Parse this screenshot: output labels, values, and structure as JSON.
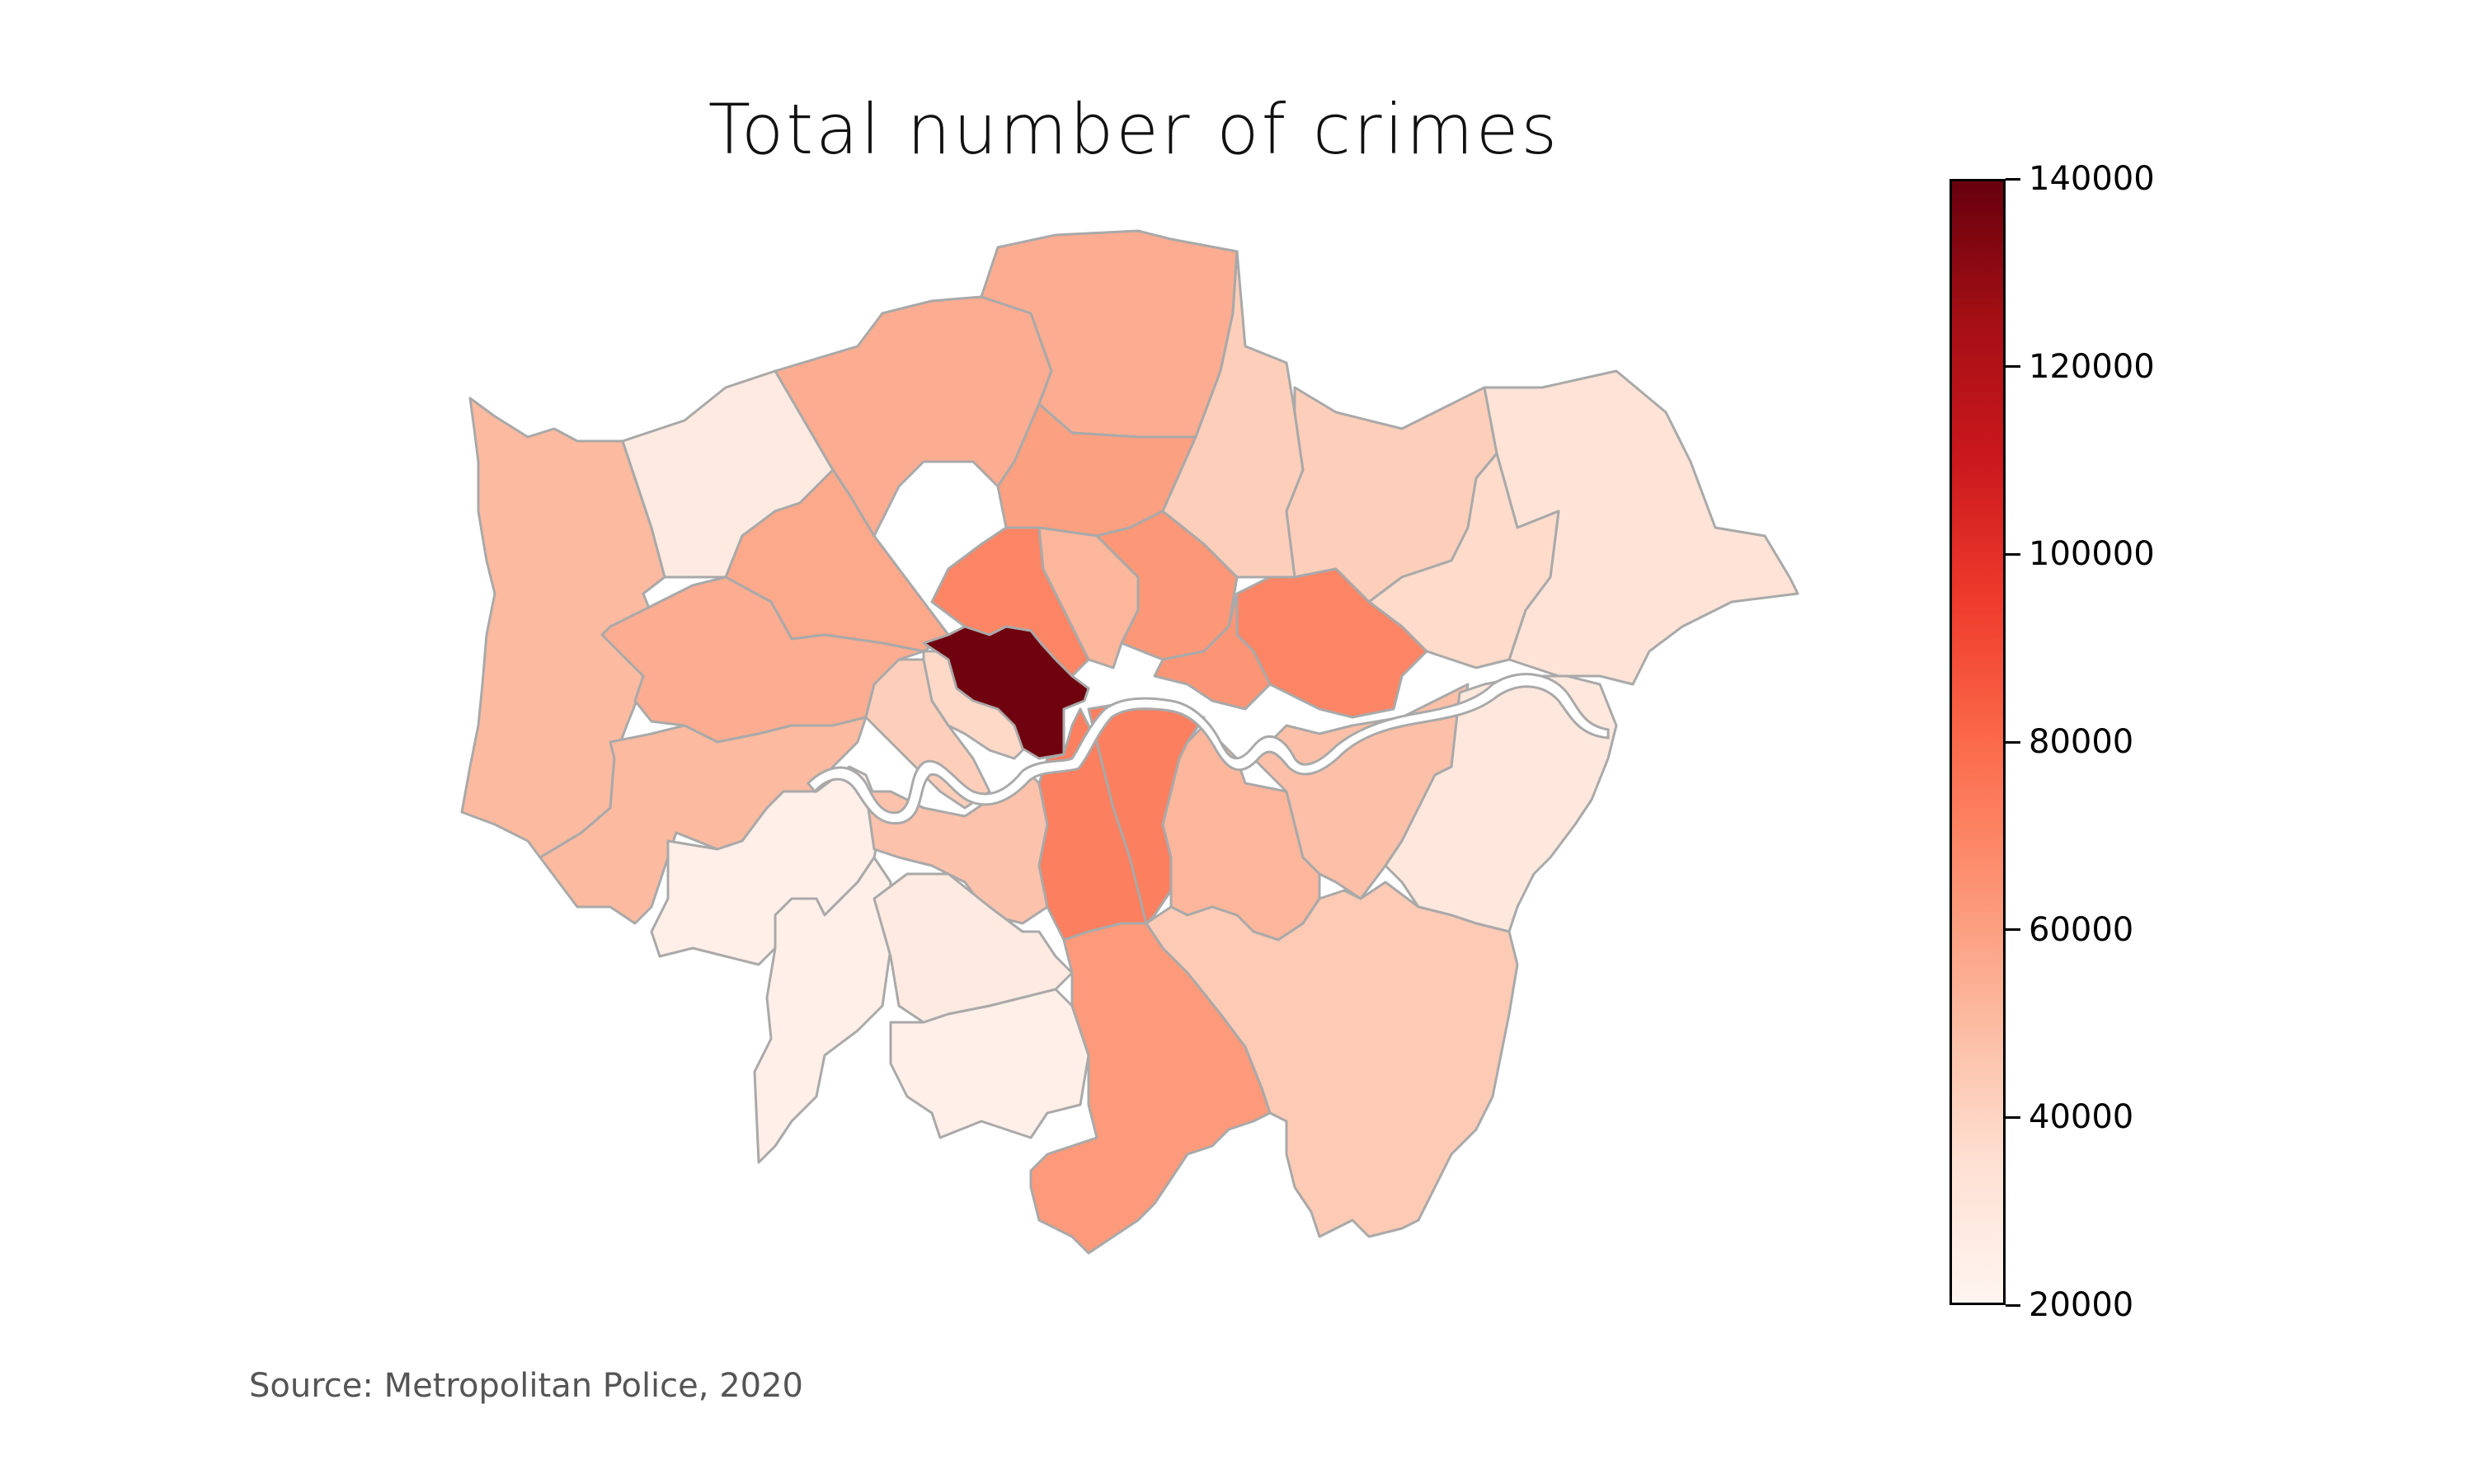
{
  "title": "Total number of crimes",
  "source": "Source: Metropolitan Police, 2020",
  "colorbar": {
    "min": 20000,
    "max": 140000,
    "ticks": [
      "140000",
      "120000",
      "100000",
      "80000",
      "60000",
      "40000",
      "20000"
    ],
    "tick_values": [
      140000,
      120000,
      100000,
      80000,
      60000,
      40000,
      20000
    ],
    "colormap": "Reds",
    "colors": [
      "#fff5f0",
      "#fee0d2",
      "#fcbba1",
      "#fc9272",
      "#fb6a4a",
      "#ef3b2c",
      "#cb181d",
      "#a50f15",
      "#67000d"
    ]
  },
  "boroughs": [
    {
      "id": "westminster",
      "value": 138000
    },
    {
      "id": "camden",
      "value": 70000
    },
    {
      "id": "islington",
      "value": 52000
    },
    {
      "id": "hackney",
      "value": 63000
    },
    {
      "id": "tower-hamlets",
      "value": 64000
    },
    {
      "id": "newham",
      "value": 70000
    },
    {
      "id": "southwark",
      "value": 72000
    },
    {
      "id": "lambeth",
      "value": 72000
    },
    {
      "id": "lewisham",
      "value": 52000
    },
    {
      "id": "greenwich",
      "value": 48000
    },
    {
      "id": "croydon",
      "value": 62000
    },
    {
      "id": "bromley",
      "value": 44000
    },
    {
      "id": "bexley",
      "value": 30000
    },
    {
      "id": "havering",
      "value": 33000
    },
    {
      "id": "barking-dagenham",
      "value": 37000
    },
    {
      "id": "redbridge",
      "value": 42000
    },
    {
      "id": "waltham-forest",
      "value": 42000
    },
    {
      "id": "enfield",
      "value": 55000
    },
    {
      "id": "haringey",
      "value": 60000
    },
    {
      "id": "barnet",
      "value": 55000
    },
    {
      "id": "harrow",
      "value": 28000
    },
    {
      "id": "hillingdon",
      "value": 50000
    },
    {
      "id": "ealing",
      "value": 55000
    },
    {
      "id": "brent",
      "value": 57000
    },
    {
      "id": "hammersmith-fulham",
      "value": 42000
    },
    {
      "id": "kensington-chelsea",
      "value": 38000
    },
    {
      "id": "hounslow",
      "value": 50000
    },
    {
      "id": "richmond",
      "value": 24000
    },
    {
      "id": "wandsworth",
      "value": 47000
    },
    {
      "id": "merton",
      "value": 28000
    },
    {
      "id": "kingston",
      "value": 24000
    },
    {
      "id": "sutton",
      "value": 24000
    }
  ]
}
